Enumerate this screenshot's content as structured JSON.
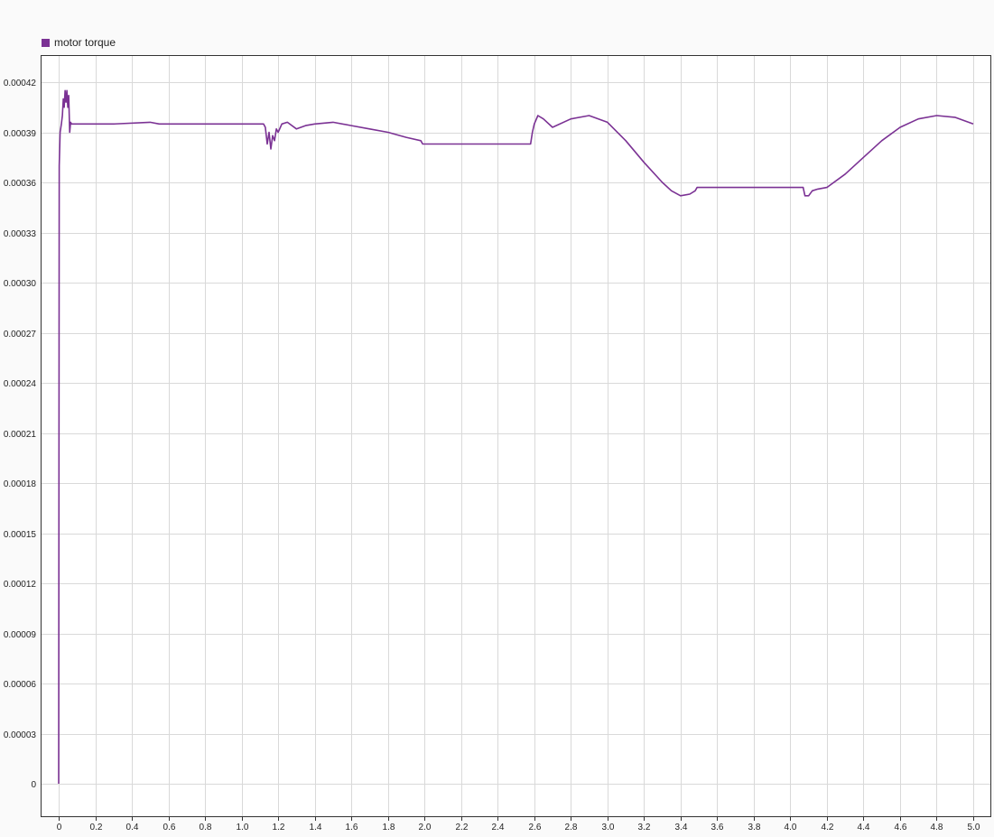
{
  "chart_data": {
    "type": "line",
    "title": "",
    "xlabel": "",
    "ylabel": "",
    "xlim": [
      0,
      5
    ],
    "ylim": [
      0,
      0.00042
    ],
    "grid": true,
    "legend_position": "top-left",
    "x_ticks": [
      "0",
      "0.2",
      "0.4",
      "0.6",
      "0.8",
      "1.0",
      "1.2",
      "1.4",
      "1.6",
      "1.8",
      "2.0",
      "2.2",
      "2.4",
      "2.6",
      "2.8",
      "3.0",
      "3.2",
      "3.4",
      "3.6",
      "3.8",
      "4.0",
      "4.2",
      "4.4",
      "4.6",
      "4.8",
      "5.0"
    ],
    "y_ticks": [
      "0",
      "0.00003",
      "0.00006",
      "0.00009",
      "0.00012",
      "0.00015",
      "0.00018",
      "0.00021",
      "0.00024",
      "0.00027",
      "0.00030",
      "0.00033",
      "0.00036",
      "0.00039",
      "0.00042"
    ],
    "series": [
      {
        "name": "motor torque",
        "color": "#7b3294",
        "x": [
          0,
          0.003,
          0.008,
          0.015,
          0.02,
          0.025,
          0.03,
          0.035,
          0.04,
          0.045,
          0.05,
          0.055,
          0.06,
          0.065,
          0.07,
          0.1,
          0.3,
          0.5,
          0.55,
          0.6,
          0.8,
          1.0,
          1.12,
          1.13,
          1.14,
          1.15,
          1.16,
          1.17,
          1.18,
          1.19,
          1.2,
          1.22,
          1.25,
          1.3,
          1.35,
          1.4,
          1.5,
          1.6,
          1.7,
          1.8,
          1.9,
          1.98,
          1.99,
          2.3,
          2.58,
          2.59,
          2.6,
          2.62,
          2.65,
          2.7,
          2.8,
          2.9,
          3.0,
          3.1,
          3.2,
          3.3,
          3.35,
          3.4,
          3.45,
          3.48,
          3.49,
          3.7,
          3.9,
          4.07,
          4.08,
          4.1,
          4.12,
          4.15,
          4.2,
          4.3,
          4.4,
          4.5,
          4.6,
          4.7,
          4.8,
          4.9,
          5.0
        ],
        "y": [
          0,
          0.00037,
          0.00039,
          0.000395,
          0.0004,
          0.00041,
          0.000405,
          0.000415,
          0.000408,
          0.000415,
          0.000405,
          0.000412,
          0.00039,
          0.000396,
          0.000395,
          0.000395,
          0.000395,
          0.000396,
          0.000395,
          0.000395,
          0.000395,
          0.000395,
          0.000395,
          0.000393,
          0.000383,
          0.00039,
          0.00038,
          0.000388,
          0.000385,
          0.000392,
          0.00039,
          0.000395,
          0.000396,
          0.000392,
          0.000394,
          0.000395,
          0.000396,
          0.000394,
          0.000392,
          0.00039,
          0.000387,
          0.000385,
          0.000383,
          0.000383,
          0.000383,
          0.00039,
          0.000395,
          0.0004,
          0.000398,
          0.000393,
          0.000398,
          0.0004,
          0.000396,
          0.000385,
          0.000372,
          0.00036,
          0.000355,
          0.000352,
          0.000353,
          0.000355,
          0.000357,
          0.000357,
          0.000357,
          0.000357,
          0.000352,
          0.000352,
          0.000355,
          0.000356,
          0.000357,
          0.000365,
          0.000375,
          0.000385,
          0.000393,
          0.000398,
          0.0004,
          0.000399,
          0.000395
        ]
      }
    ]
  }
}
